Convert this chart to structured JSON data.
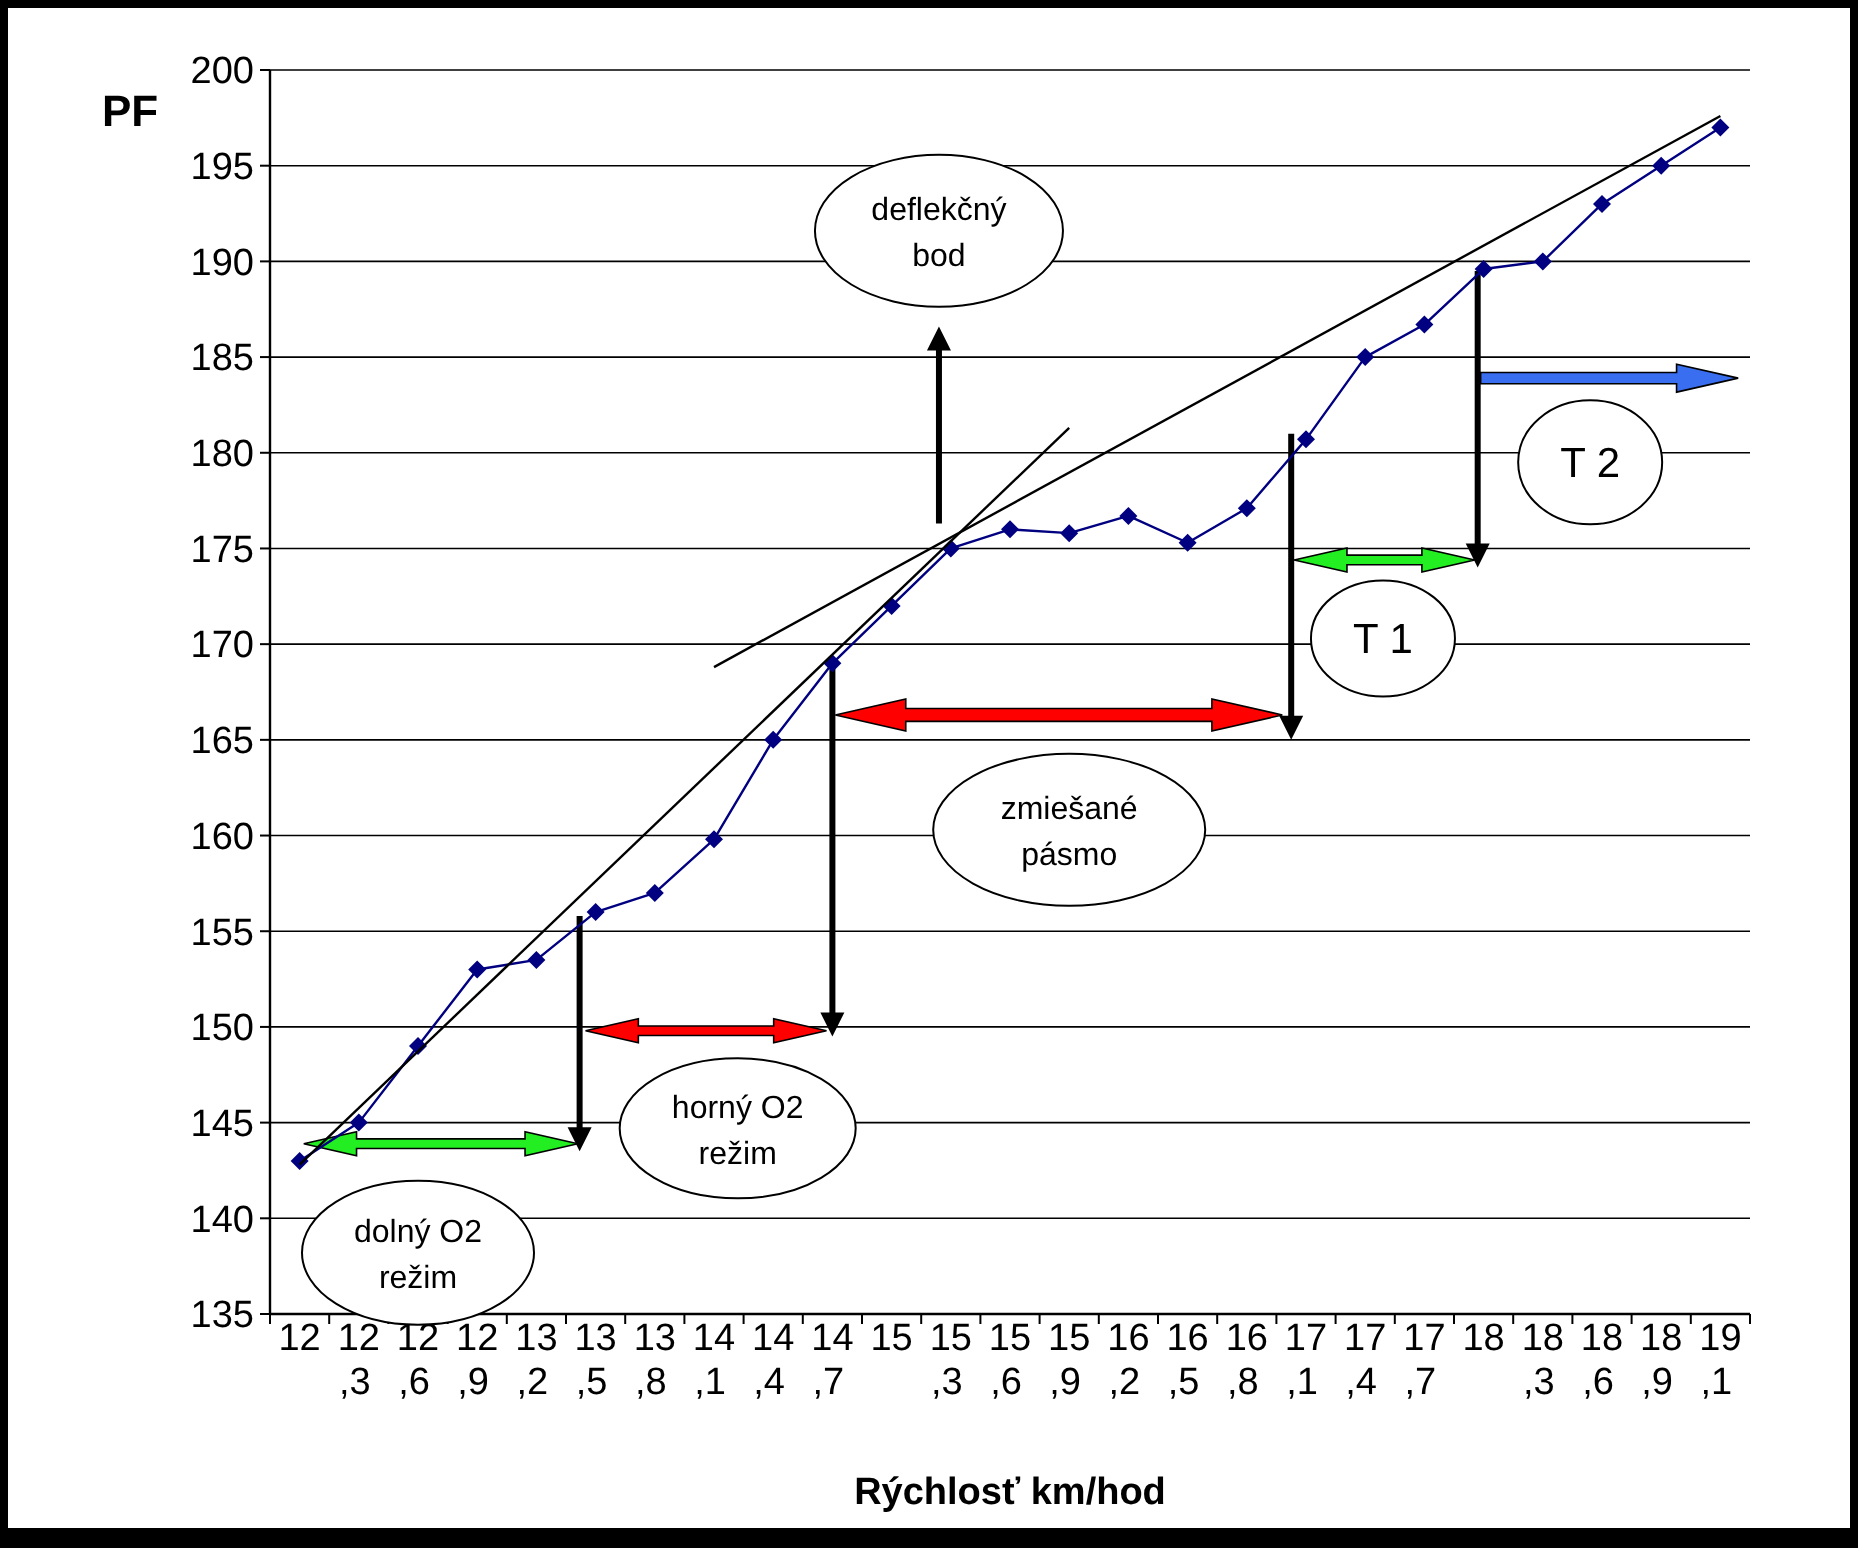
{
  "chart_data": {
    "type": "line",
    "ylabel": "PF",
    "xlabel": "Rýchlosť km/hod",
    "categories": [
      "12",
      "12,3",
      "12,6",
      "12,9",
      "13,2",
      "13,5",
      "13,8",
      "14,1",
      "14,4",
      "14,7",
      "15",
      "15,3",
      "15,6",
      "15,9",
      "16,2",
      "16,5",
      "16,8",
      "17,1",
      "17,4",
      "17,7",
      "18",
      "18,3",
      "18,6",
      "18,9",
      "19,1"
    ],
    "series": [
      {
        "color": "#000080",
        "marker": "diamond",
        "values": [
          143,
          145,
          149,
          153,
          153.5,
          156,
          157,
          159.8,
          165,
          169,
          172,
          175,
          176,
          175.8,
          176.7,
          175.3,
          177.1,
          180.7,
          185,
          186.7,
          189.6,
          190,
          193,
          195,
          197
        ]
      },
      {
        "color": "#000000",
        "marker": "none",
        "x": [
          "12",
          "15,9"
        ],
        "values": [
          142.8,
          181.3
        ]
      },
      {
        "color": "#000000",
        "marker": "none",
        "x": [
          "14,1",
          "19,1"
        ],
        "values": [
          168.8,
          197.6
        ]
      }
    ],
    "ylim": [
      135,
      200
    ],
    "yticks": [
      135,
      140,
      145,
      150,
      155,
      160,
      165,
      170,
      175,
      180,
      185,
      190,
      195,
      200
    ],
    "grid": "y",
    "annotations": [
      "deflekčný bod",
      "T 2",
      "T 1",
      "zmiešané pásmo",
      "horný O2 režim",
      "dolný O2 režim"
    ]
  }
}
